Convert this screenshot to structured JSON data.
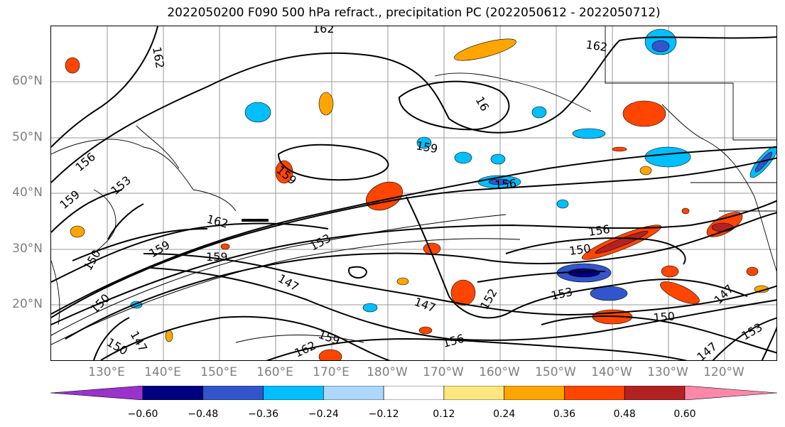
{
  "title": "2022050200 F090 500 hPa refract., precipitation PC (2022050612 - 2022050712)",
  "lat_labels": [
    "60°N",
    "50°N",
    "40°N",
    "30°N",
    "20°N"
  ],
  "lon_labels": [
    "130°E",
    "140°E",
    "150°E",
    "160°E",
    "170°E",
    "180°W",
    "170°W",
    "160°W",
    "150°W",
    "140°W",
    "130°W",
    "120°W"
  ],
  "contour_labels": [
    "162",
    "162",
    "162",
    "16",
    "159",
    "159",
    "159",
    "156",
    "153",
    "159",
    "153",
    "156",
    "162",
    "159",
    "156",
    "153",
    "150",
    "147",
    "150",
    "147",
    "150",
    "153",
    "147",
    "150",
    "162",
    "156",
    "153",
    "153",
    "147",
    "159",
    "152",
    "147",
    "150"
  ],
  "colorbar": {
    "ticks": [
      "−0.60",
      "−0.48",
      "−0.36",
      "−0.24",
      "−0.12",
      "0.12",
      "0.24",
      "0.36",
      "0.48",
      "0.60"
    ],
    "colors": [
      "#9933cc",
      "#000080",
      "#3355cc",
      "#00bfff",
      "#add8fb",
      "#ffffff",
      "#ffe680",
      "#ffa500",
      "#ff4500",
      "#b22222",
      "#ff88aa"
    ]
  }
}
